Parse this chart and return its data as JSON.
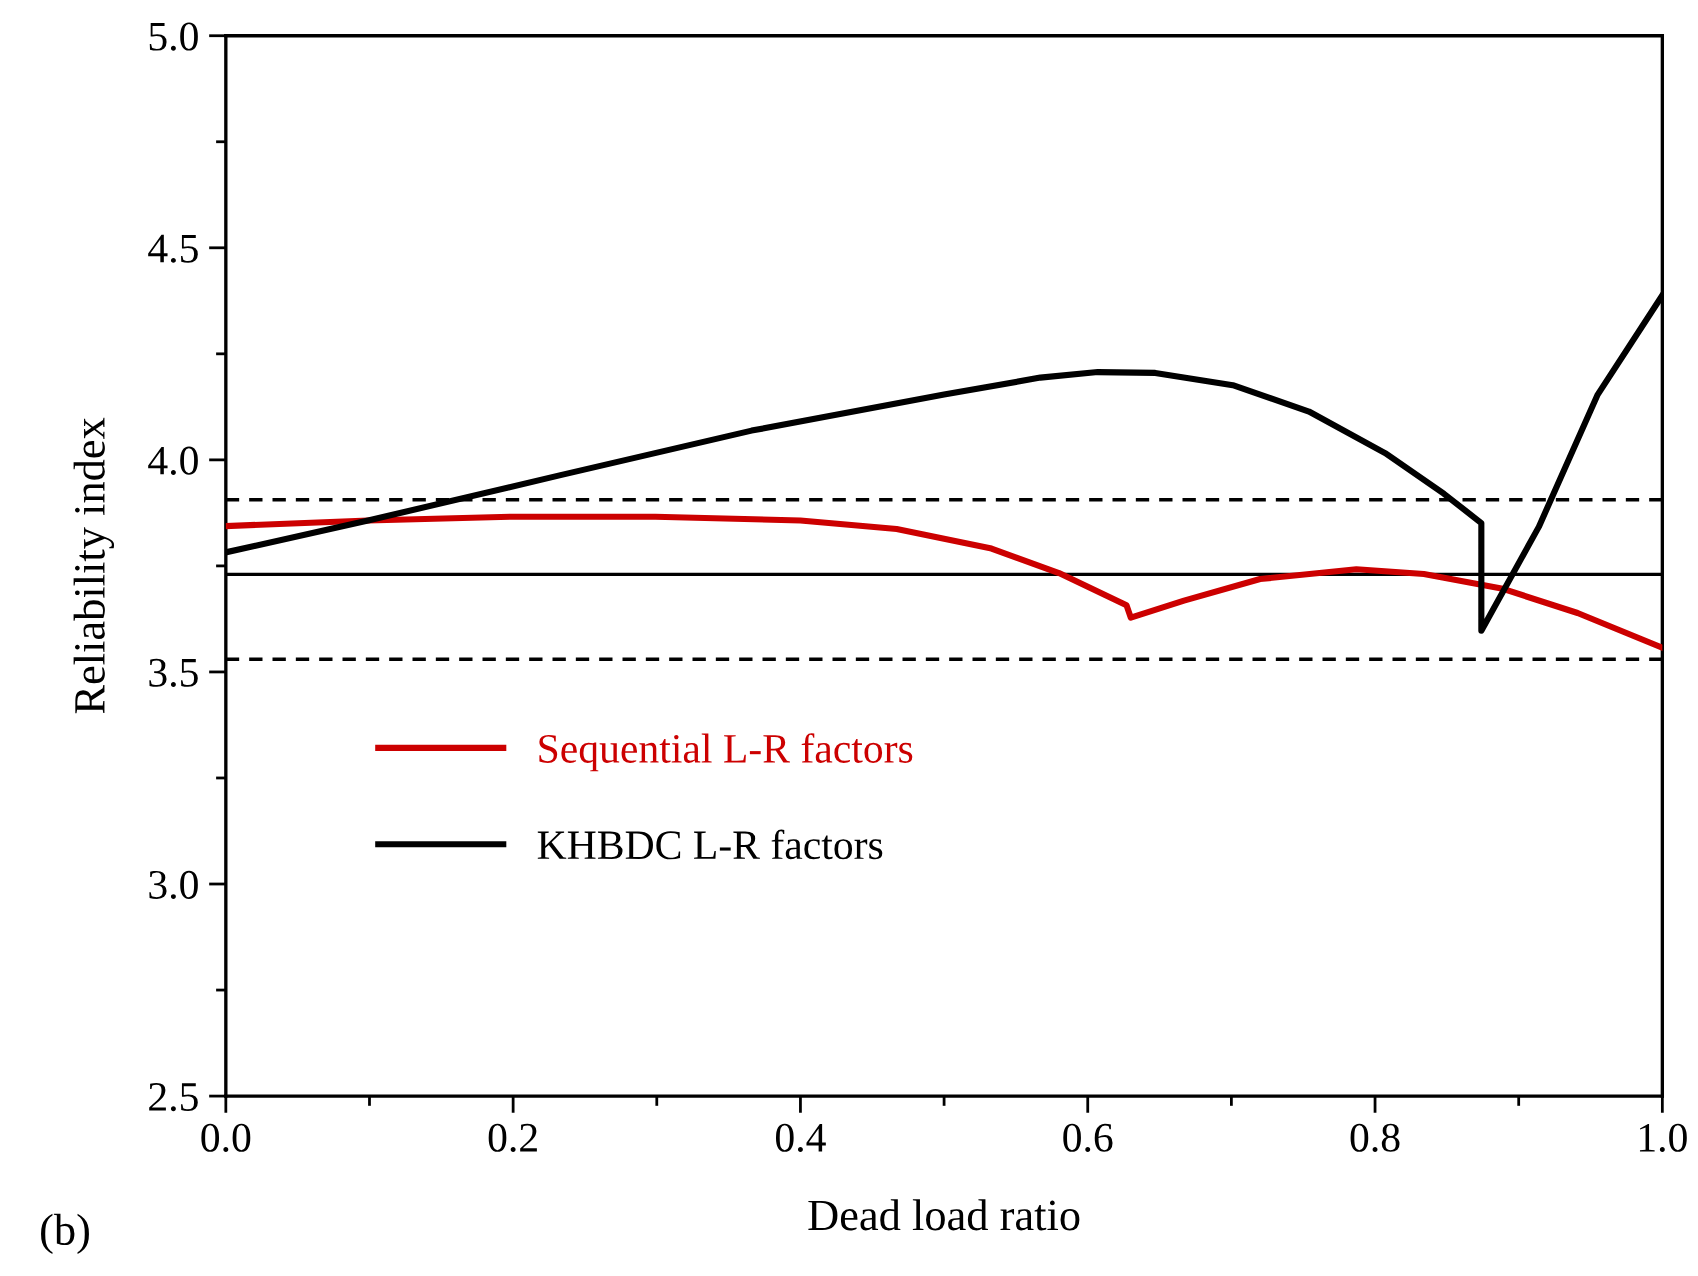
{
  "chart_data": {
    "type": "line",
    "xlabel": "Dead load ratio",
    "ylabel": "Reliability index",
    "xlim": [
      0.0,
      1.0
    ],
    "xticks": [
      {
        "value": 0,
        "label": "0.0"
      },
      0.2,
      0.4,
      0.6,
      0.8,
      {
        "value": 1,
        "label": "1.0"
      }
    ],
    "ylim": [
      2.5,
      5.0
    ],
    "yticks": [
      2.5,
      {
        "value": 3,
        "label": "3.0"
      },
      3.5,
      {
        "value": 4,
        "label": "4.0"
      },
      4.5,
      {
        "value": 5,
        "label": "5.0"
      }
    ],
    "grid": false,
    "legend": "bottom left",
    "line_style": "solid",
    "marker": "none",
    "series": [
      {
        "name": "Sequential L-R factors",
        "color": "#cc0000",
        "x": [
          0,
          0.099,
          0.199,
          0.299,
          0.4,
          0.467,
          0.533,
          0.58,
          0.627,
          0.63,
          0.667,
          0.72,
          0.787,
          0.834,
          0.888,
          0.941,
          1.0
        ],
        "values": [
          3.844,
          3.857,
          3.866,
          3.866,
          3.857,
          3.837,
          3.791,
          3.733,
          3.657,
          3.628,
          3.668,
          3.719,
          3.742,
          3.731,
          3.697,
          3.639,
          3.557
        ]
      },
      {
        "name": "KHBDC L-R factors",
        "color": "#000000",
        "x": [
          0,
          0.099,
          0.233,
          0.366,
          0.5,
          0.567,
          0.607,
          0.647,
          0.701,
          0.754,
          0.807,
          0.848,
          0.874,
          0.874,
          0.914,
          0.955,
          1.0
        ],
        "values": [
          3.782,
          3.857,
          3.964,
          4.069,
          4.154,
          4.194,
          4.207,
          4.205,
          4.176,
          4.114,
          4.016,
          3.92,
          3.851,
          3.597,
          3.842,
          4.154,
          4.388
        ]
      }
    ],
    "ref_lines": [
      {
        "axis": "y",
        "value": 3.73,
        "color": "#000000",
        "line_style": "solid"
      },
      {
        "axis": "y",
        "value": 3.906,
        "color": "#000000",
        "line_style": "dashed"
      },
      {
        "axis": "y",
        "value": 3.53,
        "color": "#000000",
        "line_style": "dashed"
      }
    ],
    "annotations": [
      "(b)"
    ]
  }
}
